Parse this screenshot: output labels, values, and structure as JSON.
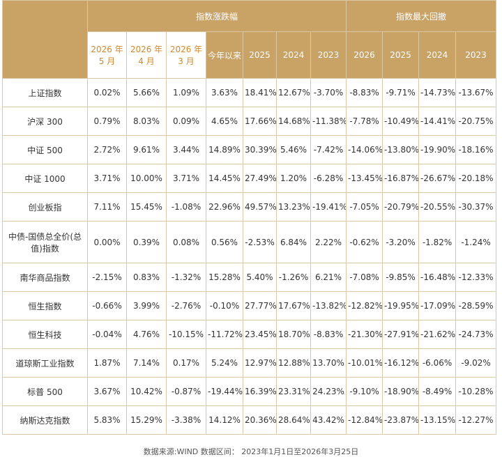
{
  "table": {
    "group_headers": [
      "指数涨跌幅",
      "指数最大回撤"
    ],
    "column_headers": [
      "2026 年 5 月",
      "2026 年 4 月",
      "2026 年 3 月",
      "今年以来",
      "2025",
      "2024",
      "2023",
      "2026",
      "2025",
      "2024",
      "2023"
    ],
    "rows": [
      [
        "上证指数",
        "0.02%",
        "5.66%",
        "1.09%",
        "3.63%",
        "18.41%",
        "12.67%",
        "-3.70%",
        "-8.83%",
        "-9.71%",
        "-14.73%",
        "-13.67%"
      ],
      [
        "沪深 300",
        "0.79%",
        "8.03%",
        "0.09%",
        "4.65%",
        "17.66%",
        "14.68%",
        "-11.38%",
        "-7.78%",
        "-10.49%",
        "-14.41%",
        "-20.75%"
      ],
      [
        "中证 500",
        "2.72%",
        "9.61%",
        "3.44%",
        "14.89%",
        "30.39%",
        "5.46%",
        "-7.42%",
        "-14.06%",
        "-13.80%",
        "-19.90%",
        "-18.16%"
      ],
      [
        "中证 1000",
        "3.71%",
        "10.00%",
        "3.71%",
        "14.45%",
        "27.49%",
        "1.20%",
        "-6.28%",
        "-13.45%",
        "-16.87%",
        "-26.67%",
        "-20.18%"
      ],
      [
        "创业板指",
        "7.11%",
        "15.45%",
        "-1.08%",
        "22.96%",
        "49.57%",
        "13.23%",
        "-19.41%",
        "-7.05%",
        "-20.79%",
        "-20.55%",
        "-30.37%"
      ],
      [
        "中债-国债总全价(总值)指数",
        "0.00%",
        "0.39%",
        "0.08%",
        "0.56%",
        "-2.53%",
        "6.84%",
        "2.22%",
        "-0.62%",
        "-3.20%",
        "-1.82%",
        "-1.24%"
      ],
      [
        "南华商品指数",
        "-2.15%",
        "0.83%",
        "-1.32%",
        "15.28%",
        "5.40%",
        "-1.26%",
        "6.21%",
        "-7.08%",
        "-9.85%",
        "-16.48%",
        "-12.33%"
      ],
      [
        "恒生指数",
        "-0.66%",
        "3.99%",
        "-2.76%",
        "-0.10%",
        "27.77%",
        "17.67%",
        "-13.82%",
        "-12.82%",
        "-19.95%",
        "-17.09%",
        "-28.59%"
      ],
      [
        "恒生科技",
        "-0.04%",
        "4.76%",
        "-10.15%",
        "-11.72%",
        "23.45%",
        "18.70%",
        "-8.83%",
        "-21.30%",
        "-27.91%",
        "-21.62%",
        "-24.73%"
      ],
      [
        "道琼斯工业指数",
        "1.87%",
        "7.14%",
        "0.17%",
        "5.24%",
        "12.97%",
        "12.88%",
        "13.70%",
        "-10.01%",
        "-16.12%",
        "-6.06%",
        "-9.02%"
      ],
      [
        "标普 500",
        "3.67%",
        "10.42%",
        "-0.87%",
        "-19.44%",
        "16.39%",
        "23.31%",
        "24.23%",
        "-9.10%",
        "-18.90%",
        "-8.49%",
        "-10.28%"
      ],
      [
        "纳斯达克指数",
        "5.83%",
        "15.29%",
        "-3.38%",
        "14.12%",
        "20.36%",
        "28.64%",
        "43.42%",
        "-12.84%",
        "-23.87%",
        "-13.15%",
        "-12.27%"
      ]
    ]
  },
  "footer": "数据来源:WIND 数据区间： 2023年1月1日至2026年3月25日"
}
